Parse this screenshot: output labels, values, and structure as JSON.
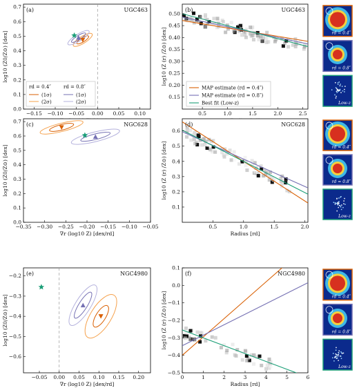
{
  "colors": {
    "orange": "#d95f02",
    "lightorange": "#f5a04a",
    "purple": "#7570b3",
    "lightpurple": "#b3b0dc",
    "green": "#1b9e77"
  },
  "rows": [
    {
      "galaxy": "UGC463",
      "left": {
        "label": "(a)",
        "xlim": [
          -0.175,
          0.125
        ],
        "ylim": [
          0.0,
          0.72
        ],
        "xticks": [
          -0.15,
          -0.1,
          -0.05,
          0.0,
          0.05,
          0.1
        ],
        "xticklabels": [
          "−0.15",
          "−0.10",
          "−0.05",
          "0.00",
          "0.05",
          "0.10"
        ],
        "yticks": [
          0.0,
          0.1,
          0.2,
          0.3,
          0.4,
          0.5,
          0.6,
          0.7
        ],
        "yticklabels": [
          "0.0",
          "0.1",
          "0.2",
          "0.3",
          "0.4",
          "0.5",
          "0.6",
          "0.7"
        ],
        "xlabel": "∇r (log10 Z) [dex/rd]",
        "ylabel": "log10 (Z0/Z⊙) [dex]",
        "map_orange": [
          -0.035,
          0.475
        ],
        "map_purple": [
          -0.045,
          0.49
        ],
        "best_fit": [
          -0.055,
          0.505
        ],
        "legend": {
          "o": "rd = 0.4″",
          "p": "rd = 0.8″",
          "s1": "(1σ)",
          "s2": "(2σ)"
        }
      },
      "right": {
        "label": "(b)",
        "xlim": [
          0.1,
          2.6
        ],
        "ylim": [
          0.1,
          0.54
        ],
        "xticks": [
          0.5,
          1.0,
          1.5,
          2.0,
          2.5
        ],
        "xticklabels": [
          "0.5",
          "1.0",
          "1.5",
          "2.0",
          "2.5"
        ],
        "yticks": [
          0.15,
          0.2,
          0.25,
          0.3,
          0.35,
          0.4,
          0.45,
          0.5
        ],
        "yticklabels": [
          "0.15",
          "0.20",
          "0.25",
          "0.30",
          "0.35",
          "0.40",
          "0.45",
          "0.50"
        ],
        "xlabel": "Radius [rd]",
        "ylabel": "log10 (Z (r) /Z⊙) [dex]",
        "lines": {
          "orange": [
            0.475,
            -0.035
          ],
          "purple": [
            0.49,
            -0.045
          ],
          "green": [
            0.505,
            -0.055
          ]
        },
        "legend": [
          "MAP estimate (rd = 0.4″)",
          "MAP estimate (rd = 0.8″)",
          "Best fit (Low-z)"
        ]
      },
      "thumbs": [
        "rd = 0.4″",
        "rd = 0.8″",
        "Low-z"
      ]
    },
    {
      "galaxy": "NGC628",
      "left": {
        "label": "(c)",
        "xlim": [
          -0.35,
          -0.05
        ],
        "ylim": [
          0.0,
          0.72
        ],
        "xticks": [
          -0.35,
          -0.3,
          -0.25,
          -0.2,
          -0.15,
          -0.1,
          -0.05
        ],
        "xticklabels": [
          "−0.35",
          "−0.30",
          "−0.25",
          "−0.20",
          "−0.15",
          "−0.10",
          "−0.05"
        ],
        "yticks": [
          0.0,
          0.1,
          0.2,
          0.3,
          0.4,
          0.5,
          0.6,
          0.7
        ],
        "yticklabels": [
          "0.0",
          "0.1",
          "0.2",
          "0.3",
          "0.4",
          "0.5",
          "0.6",
          "0.7"
        ],
        "xlabel": "∇r (log10 Z) [dex/rd]",
        "ylabel": "log10 (Z0/Z⊙) [dex]",
        "map_orange": [
          -0.26,
          0.66
        ],
        "map_purple": [
          -0.18,
          0.595
        ],
        "best_fit": [
          -0.205,
          0.605
        ]
      },
      "right": {
        "label": "(d)",
        "xlim": [
          0.0,
          2.05
        ],
        "ylim": [
          0.0,
          0.68
        ],
        "xticks": [
          0.5,
          1.0,
          1.5,
          2.0
        ],
        "xticklabels": [
          "0.5",
          "1.0",
          "1.5",
          "2.0"
        ],
        "yticks": [
          0.1,
          0.2,
          0.3,
          0.4,
          0.5,
          0.6
        ],
        "yticklabels": [
          "0.1",
          "0.2",
          "0.3",
          "0.4",
          "0.5",
          "0.6"
        ],
        "xlabel": "Radius [rd]",
        "ylabel": "log10 (Z (r) /Z⊙) [dex]",
        "lines": {
          "orange": [
            0.66,
            -0.26
          ],
          "purple": [
            0.595,
            -0.18
          ],
          "green": [
            0.605,
            -0.205
          ]
        }
      },
      "thumbs": [
        "rd = 0.4″",
        "rd = 0.8″",
        "Low-z"
      ]
    },
    {
      "galaxy": "NGC4980",
      "left": {
        "label": "(e)",
        "xlim": [
          -0.09,
          0.23
        ],
        "ylim": [
          -0.68,
          -0.16
        ],
        "xticks": [
          -0.05,
          0.0,
          0.05,
          0.1,
          0.15,
          0.2
        ],
        "xticklabels": [
          "−0.05",
          "0.00",
          "0.05",
          "0.10",
          "0.15",
          "0.20"
        ],
        "yticks": [
          -0.6,
          -0.5,
          -0.4,
          -0.3,
          -0.2
        ],
        "yticklabels": [
          "−0.6",
          "−0.5",
          "−0.4",
          "−0.3",
          "−0.2"
        ],
        "xlabel": "∇r (log10 Z) [dex/rd]",
        "ylabel": "log10 (Z0/Z⊙) [dex]",
        "map_orange": [
          0.105,
          -0.4
        ],
        "map_purple": [
          0.06,
          -0.345
        ],
        "best_fit": [
          -0.045,
          -0.255
        ]
      },
      "right": {
        "label": "(f)",
        "xlim": [
          0,
          6
        ],
        "ylim": [
          -0.5,
          0.1
        ],
        "xticks": [
          0,
          1,
          2,
          3,
          4,
          5,
          6
        ],
        "xticklabels": [
          "0",
          "1",
          "2",
          "3",
          "4",
          "5",
          "6"
        ],
        "yticks": [
          -0.5,
          -0.4,
          -0.3,
          -0.2,
          -0.1,
          0.0,
          0.1
        ],
        "yticklabels": [
          "−0.5",
          "−0.4",
          "−0.3",
          "−0.2",
          "−0.1",
          "0.0",
          "0.1"
        ],
        "xlabel": "Radius [rd]",
        "ylabel": "log10 (Z (r) /Z⊙) [dex]",
        "lines": {
          "orange": [
            -0.4,
            0.105
          ],
          "purple": [
            -0.345,
            0.06
          ],
          "green": [
            -0.255,
            -0.045
          ]
        }
      },
      "thumbs": [
        "rd = 0.4″",
        "rd = 0.8″",
        "Low-z"
      ]
    }
  ],
  "chart_data": [
    {
      "type": "scatter",
      "galaxy": "UGC463",
      "panel": "(a)",
      "xlabel": "∇r (log10 Z) [dex/rd]",
      "ylabel": "log10 (Z0/Z⊙) [dex]",
      "xlim": [
        -0.175,
        0.125
      ],
      "ylim": [
        0.0,
        0.72
      ],
      "series": [
        {
          "name": "MAP estimate (rd = 0.4″)",
          "x": [
            -0.035
          ],
          "y": [
            0.475
          ]
        },
        {
          "name": "MAP estimate (rd = 0.8″)",
          "x": [
            -0.045
          ],
          "y": [
            0.49
          ]
        },
        {
          "name": "Best fit (Low-z)",
          "x": [
            -0.055
          ],
          "y": [
            0.505
          ]
        }
      ]
    },
    {
      "type": "line",
      "galaxy": "UGC463",
      "panel": "(b)",
      "xlabel": "Radius [rd]",
      "ylabel": "log10 (Z (r) /Z⊙) [dex]",
      "xlim": [
        0.1,
        2.6
      ],
      "ylim": [
        0.1,
        0.54
      ],
      "series": [
        {
          "name": "MAP estimate (rd = 0.4″)",
          "intercept": 0.475,
          "slope": -0.035
        },
        {
          "name": "MAP estimate (rd = 0.8″)",
          "intercept": 0.49,
          "slope": -0.045
        },
        {
          "name": "Best fit (Low-z)",
          "intercept": 0.505,
          "slope": -0.055
        }
      ]
    },
    {
      "type": "scatter",
      "galaxy": "NGC628",
      "panel": "(c)",
      "xlim": [
        -0.35,
        -0.05
      ],
      "ylim": [
        0.0,
        0.72
      ],
      "series": [
        {
          "name": "MAP estimate (rd = 0.4″)",
          "x": [
            -0.26
          ],
          "y": [
            0.66
          ]
        },
        {
          "name": "MAP estimate (rd = 0.8″)",
          "x": [
            -0.18
          ],
          "y": [
            0.595
          ]
        },
        {
          "name": "Best fit (Low-z)",
          "x": [
            -0.205
          ],
          "y": [
            0.605
          ]
        }
      ]
    },
    {
      "type": "line",
      "galaxy": "NGC628",
      "panel": "(d)",
      "xlim": [
        0.0,
        2.05
      ],
      "ylim": [
        0.0,
        0.68
      ],
      "series": [
        {
          "name": "MAP estimate (rd = 0.4″)",
          "intercept": 0.66,
          "slope": -0.26
        },
        {
          "name": "MAP estimate (rd = 0.8″)",
          "intercept": 0.595,
          "slope": -0.18
        },
        {
          "name": "Best fit (Low-z)",
          "intercept": 0.605,
          "slope": -0.205
        }
      ]
    },
    {
      "type": "scatter",
      "galaxy": "NGC4980",
      "panel": "(e)",
      "xlim": [
        -0.09,
        0.23
      ],
      "ylim": [
        -0.68,
        -0.16
      ],
      "series": [
        {
          "name": "MAP estimate (rd = 0.4″)",
          "x": [
            0.105
          ],
          "y": [
            -0.4
          ]
        },
        {
          "name": "MAP estimate (rd = 0.8″)",
          "x": [
            0.06
          ],
          "y": [
            -0.345
          ]
        },
        {
          "name": "Best fit (Low-z)",
          "x": [
            -0.045
          ],
          "y": [
            -0.255
          ]
        }
      ]
    },
    {
      "type": "line",
      "galaxy": "NGC4980",
      "panel": "(f)",
      "xlim": [
        0,
        6
      ],
      "ylim": [
        -0.5,
        0.1
      ],
      "series": [
        {
          "name": "MAP estimate (rd = 0.4″)",
          "intercept": -0.4,
          "slope": 0.105
        },
        {
          "name": "MAP estimate (rd = 0.8″)",
          "intercept": -0.345,
          "slope": 0.06
        },
        {
          "name": "Best fit (Low-z)",
          "intercept": -0.255,
          "slope": -0.045
        }
      ]
    }
  ]
}
